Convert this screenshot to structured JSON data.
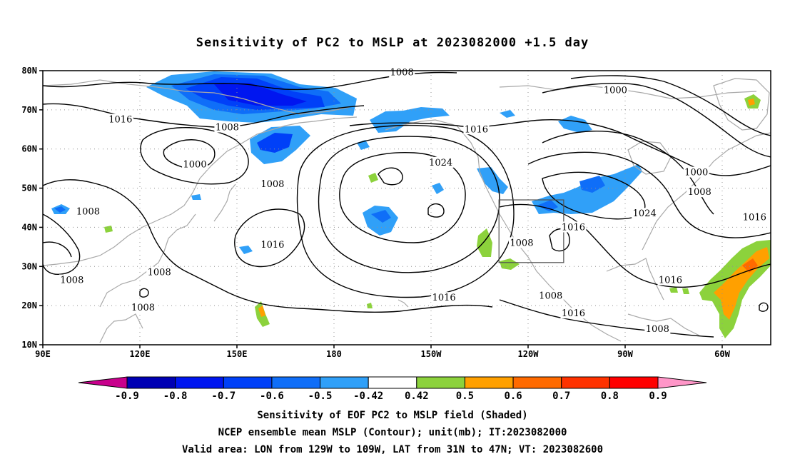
{
  "title": "Sensitivity of PC2 to MSLP at 2023082000 +1.5 day",
  "map": {
    "lon_range": [
      90,
      315
    ],
    "lat_range": [
      10,
      80
    ],
    "lat_ticks": [
      {
        "value": 80,
        "label": "80N"
      },
      {
        "value": 70,
        "label": "70N"
      },
      {
        "value": 60,
        "label": "60N"
      },
      {
        "value": 50,
        "label": "50N"
      },
      {
        "value": 40,
        "label": "40N"
      },
      {
        "value": 30,
        "label": "30N"
      },
      {
        "value": 20,
        "label": "20N"
      },
      {
        "value": 10,
        "label": "10N"
      }
    ],
    "lon_ticks": [
      {
        "value": 90,
        "label": "90E"
      },
      {
        "value": 120,
        "label": "120E"
      },
      {
        "value": 150,
        "label": "150E"
      },
      {
        "value": 180,
        "label": "180"
      },
      {
        "value": 210,
        "label": "150W"
      },
      {
        "value": 240,
        "label": "120W"
      },
      {
        "value": 270,
        "label": "90W"
      },
      {
        "value": 300,
        "label": "60W"
      }
    ],
    "grid": "dotted",
    "valid_box": {
      "lon": [
        231,
        251
      ],
      "lat": [
        31,
        47
      ]
    }
  },
  "contour_labels": [
    {
      "text": "1008",
      "lon": 201,
      "lat": 79.5
    },
    {
      "text": "1000",
      "lon": 267,
      "lat": 75
    },
    {
      "text": "1016",
      "lon": 114,
      "lat": 67.5
    },
    {
      "text": "1008",
      "lon": 147,
      "lat": 65.5
    },
    {
      "text": "1016",
      "lon": 224,
      "lat": 65
    },
    {
      "text": "1000",
      "lon": 137,
      "lat": 56
    },
    {
      "text": "1024",
      "lon": 213,
      "lat": 56.5
    },
    {
      "text": "1000",
      "lon": 292,
      "lat": 54
    },
    {
      "text": "1008",
      "lon": 161,
      "lat": 51
    },
    {
      "text": "1008",
      "lon": 293,
      "lat": 49
    },
    {
      "text": "1008",
      "lon": 104,
      "lat": 44
    },
    {
      "text": "1024",
      "lon": 276,
      "lat": 43.5
    },
    {
      "text": "1016",
      "lon": 310,
      "lat": 42.5
    },
    {
      "text": "1016",
      "lon": 254,
      "lat": 40
    },
    {
      "text": "1016",
      "lon": 161,
      "lat": 35.5
    },
    {
      "text": "1008",
      "lon": 238,
      "lat": 36
    },
    {
      "text": "1008",
      "lon": 126,
      "lat": 28.5
    },
    {
      "text": "1008",
      "lon": 99,
      "lat": 26.5
    },
    {
      "text": "1016",
      "lon": 284,
      "lat": 26.5
    },
    {
      "text": "1016",
      "lon": 214,
      "lat": 22
    },
    {
      "text": "1008",
      "lon": 247,
      "lat": 22.5
    },
    {
      "text": "1008",
      "lon": 121,
      "lat": 19.5
    },
    {
      "text": "1016",
      "lon": 254,
      "lat": 18
    },
    {
      "text": "1008",
      "lon": 280,
      "lat": 14
    }
  ],
  "colorbar": {
    "colors": [
      "#0000b4",
      "#0016f0",
      "#0040f8",
      "#0f6ef8",
      "#30a0f8",
      "#ffffff",
      "#8cd23c",
      "#ffa000",
      "#ff6a00",
      "#ff3200",
      "#ff0000"
    ],
    "low_end_color": "#c8008c",
    "high_end_color": "#ff96c8",
    "labels": [
      "-0.9",
      "-0.8",
      "-0.7",
      "-0.6",
      "-0.5",
      "-0.42",
      "0.42",
      "0.5",
      "0.6",
      "0.7",
      "0.8",
      "0.9"
    ]
  },
  "captions": [
    "Sensitivity of EOF PC2 to MSLP field (Shaded)",
    "NCEP ensemble mean MSLP (Contour); unit(mb); IT:2023082000",
    "Valid area: LON from 129W to 109W, LAT from 31N to 47N; VT: 2023082600"
  ]
}
